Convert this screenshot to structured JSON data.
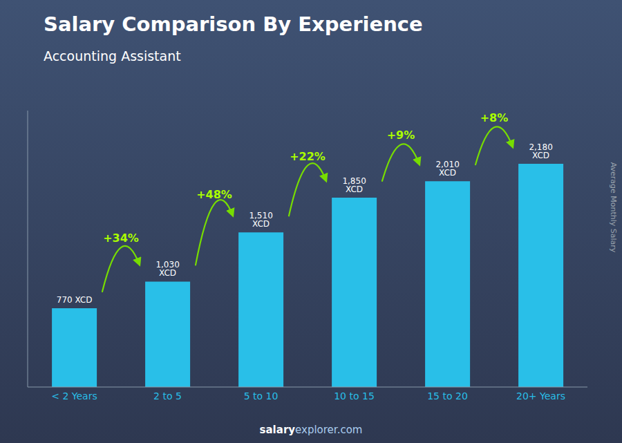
{
  "chart_data": {
    "type": "bar",
    "title": "Salary Comparison By Experience",
    "subtitle": "Accounting Assistant",
    "ylabel": "Average Monthly Salary",
    "categories": [
      "< 2 Years",
      "2 to 5",
      "5 to 10",
      "10 to 15",
      "15 to 20",
      "20+ Years"
    ],
    "values": [
      770,
      1030,
      1510,
      1850,
      2010,
      2180
    ],
    "value_labels": [
      "770 XCD",
      "1,030 XCD",
      "1,510 XCD",
      "1,850 XCD",
      "2,010 XCD",
      "2,180 XCD"
    ],
    "data_labels": true,
    "color": "#29bfe8",
    "ylim": [
      0,
      2700
    ],
    "tick_labels": "x",
    "grid": false,
    "annotations": [
      "+34%",
      "+48%",
      "+22%",
      "+9%",
      "+8%"
    ],
    "watermark": [
      "salary",
      "explorer.com"
    ]
  }
}
